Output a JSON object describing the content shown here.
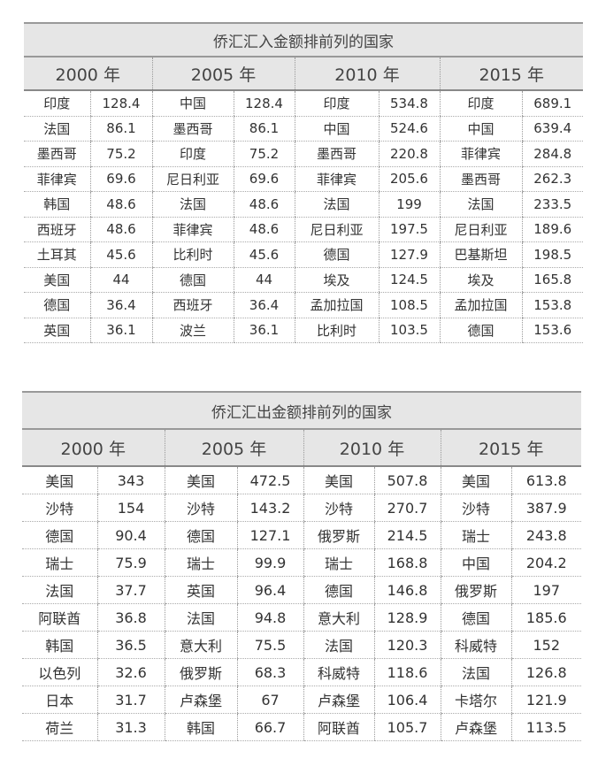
{
  "tables": [
    {
      "title": "侨汇汇入金额排前列的国家",
      "years": [
        "2000 年",
        "2005 年",
        "2010 年",
        "2015 年"
      ],
      "rows": [
        [
          [
            "印度",
            "128.4"
          ],
          [
            "中国",
            "128.4"
          ],
          [
            "印度",
            "534.8"
          ],
          [
            "印度",
            "689.1"
          ]
        ],
        [
          [
            "法国",
            "86.1"
          ],
          [
            "墨西哥",
            "86.1"
          ],
          [
            "中国",
            "524.6"
          ],
          [
            "中国",
            "639.4"
          ]
        ],
        [
          [
            "墨西哥",
            "75.2"
          ],
          [
            "印度",
            "75.2"
          ],
          [
            "墨西哥",
            "220.8"
          ],
          [
            "菲律宾",
            "284.8"
          ]
        ],
        [
          [
            "菲律宾",
            "69.6"
          ],
          [
            "尼日利亚",
            "69.6"
          ],
          [
            "菲律宾",
            "205.6"
          ],
          [
            "墨西哥",
            "262.3"
          ]
        ],
        [
          [
            "韩国",
            "48.6"
          ],
          [
            "法国",
            "48.6"
          ],
          [
            "法国",
            "199"
          ],
          [
            "法国",
            "233.5"
          ]
        ],
        [
          [
            "西班牙",
            "48.6"
          ],
          [
            "菲律宾",
            "48.6"
          ],
          [
            "尼日利亚",
            "197.5"
          ],
          [
            "尼日利亚",
            "189.6"
          ]
        ],
        [
          [
            "土耳其",
            "45.6"
          ],
          [
            "比利时",
            "45.6"
          ],
          [
            "德国",
            "127.9"
          ],
          [
            "巴基斯坦",
            "198.5"
          ]
        ],
        [
          [
            "美国",
            "44"
          ],
          [
            "德国",
            "44"
          ],
          [
            "埃及",
            "124.5"
          ],
          [
            "埃及",
            "165.8"
          ]
        ],
        [
          [
            "德国",
            "36.4"
          ],
          [
            "西班牙",
            "36.4"
          ],
          [
            "孟加拉国",
            "108.5"
          ],
          [
            "孟加拉国",
            "153.8"
          ]
        ],
        [
          [
            "英国",
            "36.1"
          ],
          [
            "波兰",
            "36.1"
          ],
          [
            "比利时",
            "103.5"
          ],
          [
            "德国",
            "153.6"
          ]
        ]
      ]
    },
    {
      "title": "侨汇汇出金额排前列的国家",
      "years": [
        "2000 年",
        "2005 年",
        "2010 年",
        "2015 年"
      ],
      "rows": [
        [
          [
            "美国",
            "343"
          ],
          [
            "美国",
            "472.5"
          ],
          [
            "美国",
            "507.8"
          ],
          [
            "美国",
            "613.8"
          ]
        ],
        [
          [
            "沙特",
            "154"
          ],
          [
            "沙特",
            "143.2"
          ],
          [
            "沙特",
            "270.7"
          ],
          [
            "沙特",
            "387.9"
          ]
        ],
        [
          [
            "德国",
            "90.4"
          ],
          [
            "德国",
            "127.1"
          ],
          [
            "俄罗斯",
            "214.5"
          ],
          [
            "瑞士",
            "243.8"
          ]
        ],
        [
          [
            "瑞士",
            "75.9"
          ],
          [
            "瑞士",
            "99.9"
          ],
          [
            "瑞士",
            "168.8"
          ],
          [
            "中国",
            "204.2"
          ]
        ],
        [
          [
            "法国",
            "37.7"
          ],
          [
            "英国",
            "96.4"
          ],
          [
            "德国",
            "146.8"
          ],
          [
            "俄罗斯",
            "197"
          ]
        ],
        [
          [
            "阿联酋",
            "36.8"
          ],
          [
            "法国",
            "94.8"
          ],
          [
            "意大利",
            "128.9"
          ],
          [
            "德国",
            "185.6"
          ]
        ],
        [
          [
            "韩国",
            "36.5"
          ],
          [
            "意大利",
            "75.5"
          ],
          [
            "法国",
            "120.3"
          ],
          [
            "科威特",
            "152"
          ]
        ],
        [
          [
            "以色列",
            "32.6"
          ],
          [
            "俄罗斯",
            "68.3"
          ],
          [
            "科威特",
            "118.6"
          ],
          [
            "法国",
            "126.8"
          ]
        ],
        [
          [
            "日本",
            "31.7"
          ],
          [
            "卢森堡",
            "67"
          ],
          [
            "卢森堡",
            "106.4"
          ],
          [
            "卡塔尔",
            "121.9"
          ]
        ],
        [
          [
            "荷兰",
            "31.3"
          ],
          [
            "韩国",
            "66.7"
          ],
          [
            "阿联酋",
            "105.7"
          ],
          [
            "卢森堡",
            "113.5"
          ]
        ]
      ]
    }
  ]
}
